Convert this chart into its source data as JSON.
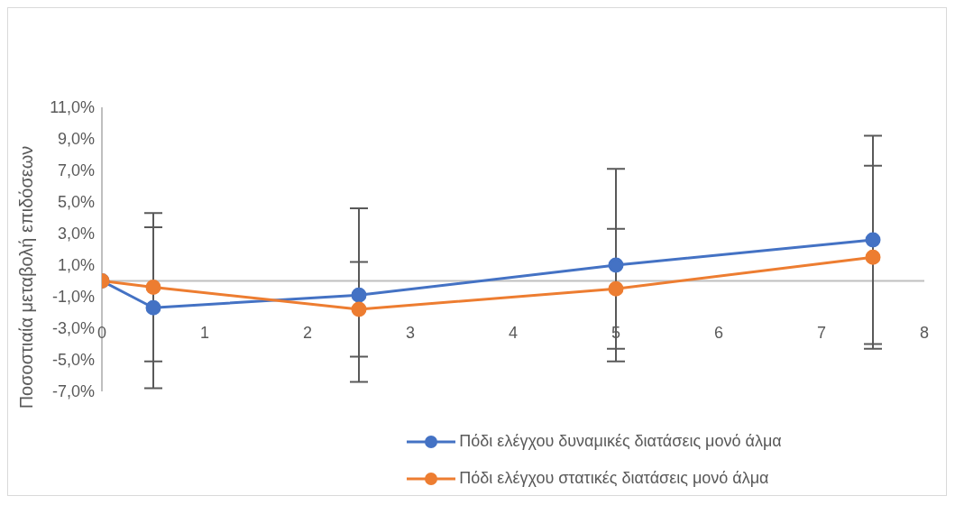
{
  "chart_data": {
    "type": "line",
    "ylabel": "Ποσοστιαία μεταβολή επιδόσεων",
    "x": [
      0,
      0.5,
      2.5,
      5,
      7.5
    ],
    "series": [
      {
        "name": "Πόδι ελέγχου δυναμικές διατάσεις μονό άλμα",
        "color": "#4472c4",
        "values": [
          0,
          -1.7,
          -0.9,
          1.0,
          2.6
        ],
        "errors": [
          null,
          5.1,
          5.5,
          6.1,
          6.6
        ]
      },
      {
        "name": "Πόδι ελέγχου στατικές διατάσεις μονό άλμα",
        "color": "#ed7d31",
        "values": [
          0,
          -0.4,
          -1.8,
          -0.5,
          1.5
        ],
        "errors": [
          null,
          4.7,
          3.0,
          3.8,
          5.8
        ]
      }
    ],
    "xlim": [
      0,
      8
    ],
    "xticks": [
      0,
      1,
      2,
      3,
      4,
      5,
      6,
      7,
      8
    ],
    "ylim": [
      -7,
      11
    ],
    "yticks": [
      {
        "value": -7,
        "label": "-7,0%"
      },
      {
        "value": -5,
        "label": "-5,0%"
      },
      {
        "value": -3,
        "label": "-3,0%"
      },
      {
        "value": -1,
        "label": "-1,0%"
      },
      {
        "value": 1,
        "label": "1,0%"
      },
      {
        "value": 3,
        "label": "3,0%"
      },
      {
        "value": 5,
        "label": "5,0%"
      },
      {
        "value": 7,
        "label": "7,0%"
      },
      {
        "value": 9,
        "label": "9,0%"
      },
      {
        "value": 11,
        "label": "11,0%"
      }
    ],
    "grid": false,
    "legend": "bottom",
    "marker": "circle",
    "line_style": "solid"
  }
}
